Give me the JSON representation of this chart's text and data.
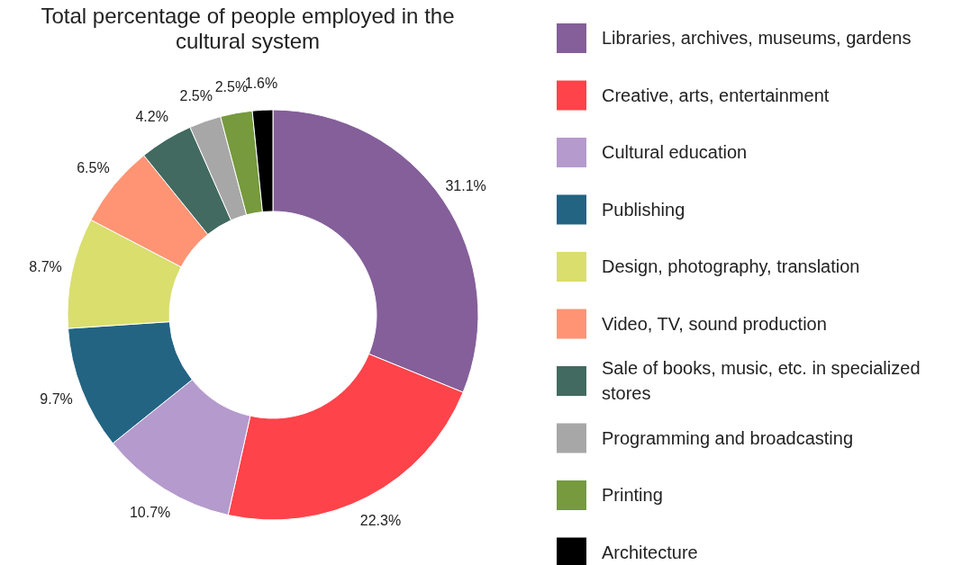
{
  "chart_data": {
    "type": "donut",
    "title": "Total percentage of people employed in the cultural system",
    "categories": [
      "Libraries, archives, museums, gardens",
      "Creative, arts, entertainment",
      "Cultural education",
      "Publishing",
      "Design, photography, translation",
      "Video, TV, sound production",
      "Sale of books, music, etc. in specialized stores",
      "Programming and broadcasting",
      "Printing",
      "Architecture"
    ],
    "values": [
      31.1,
      22.3,
      10.7,
      9.7,
      8.7,
      6.5,
      4.2,
      2.5,
      2.5,
      1.6
    ],
    "value_labels": [
      "31.1%",
      "22.3%",
      "10.7%",
      "9.7%",
      "8.7%",
      "6.5%",
      "4.2%",
      "2.5%",
      "2.5%",
      "1.6%"
    ],
    "colors": [
      "#845f99",
      "#fe434a",
      "#b59acd",
      "#236483",
      "#d9de6d",
      "#fe9474",
      "#426a60",
      "#a7a7a7",
      "#769a3d",
      "#000000"
    ],
    "legend": "right"
  }
}
